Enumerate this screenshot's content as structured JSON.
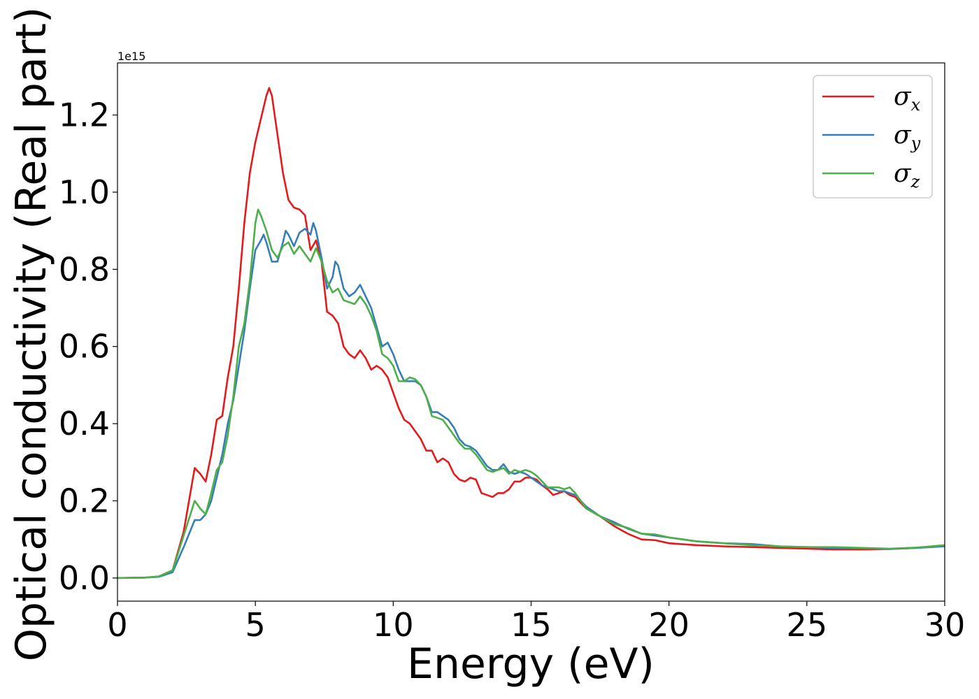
{
  "chart_data": {
    "type": "line",
    "xlabel": "Energy (eV)",
    "ylabel": "Optical conductivity (Real part)",
    "offset_text": "1e15",
    "xlim": [
      0,
      30
    ],
    "ylim": [
      -0.06,
      1.335
    ],
    "x_ticks": [
      0,
      5,
      10,
      15,
      20,
      25,
      30
    ],
    "x_tick_labels": [
      "0",
      "5",
      "10",
      "15",
      "20",
      "25",
      "30"
    ],
    "y_ticks": [
      0.0,
      0.2,
      0.4,
      0.6,
      0.8,
      1.0,
      1.2
    ],
    "y_tick_labels": [
      "0.0",
      "0.2",
      "0.4",
      "0.6",
      "0.8",
      "1.0",
      "1.2"
    ],
    "grid": false,
    "legend_position": "top-right",
    "series": [
      {
        "name": "σx",
        "name_base": "σ",
        "name_sub": "x",
        "color": "#e41a1c",
        "points": [
          [
            0,
            0
          ],
          [
            1,
            0.001
          ],
          [
            1.5,
            0.004
          ],
          [
            2.0,
            0.02
          ],
          [
            2.4,
            0.12
          ],
          [
            2.8,
            0.285
          ],
          [
            3.0,
            0.27
          ],
          [
            3.2,
            0.25
          ],
          [
            3.4,
            0.32
          ],
          [
            3.6,
            0.41
          ],
          [
            3.8,
            0.42
          ],
          [
            4.0,
            0.52
          ],
          [
            4.2,
            0.6
          ],
          [
            4.4,
            0.75
          ],
          [
            4.6,
            0.92
          ],
          [
            4.8,
            1.05
          ],
          [
            5.0,
            1.13
          ],
          [
            5.2,
            1.19
          ],
          [
            5.4,
            1.25
          ],
          [
            5.5,
            1.27
          ],
          [
            5.6,
            1.25
          ],
          [
            5.8,
            1.15
          ],
          [
            6.0,
            1.05
          ],
          [
            6.2,
            0.98
          ],
          [
            6.4,
            0.96
          ],
          [
            6.6,
            0.955
          ],
          [
            6.8,
            0.94
          ],
          [
            7.0,
            0.85
          ],
          [
            7.2,
            0.875
          ],
          [
            7.4,
            0.82
          ],
          [
            7.6,
            0.69
          ],
          [
            7.8,
            0.68
          ],
          [
            8.0,
            0.66
          ],
          [
            8.2,
            0.6
          ],
          [
            8.4,
            0.58
          ],
          [
            8.6,
            0.57
          ],
          [
            8.8,
            0.59
          ],
          [
            9.0,
            0.57
          ],
          [
            9.2,
            0.54
          ],
          [
            9.4,
            0.55
          ],
          [
            9.6,
            0.54
          ],
          [
            9.8,
            0.52
          ],
          [
            10.0,
            0.48
          ],
          [
            10.2,
            0.44
          ],
          [
            10.4,
            0.41
          ],
          [
            10.6,
            0.4
          ],
          [
            10.8,
            0.38
          ],
          [
            11.0,
            0.36
          ],
          [
            11.2,
            0.33
          ],
          [
            11.4,
            0.33
          ],
          [
            11.6,
            0.3
          ],
          [
            11.8,
            0.31
          ],
          [
            12.0,
            0.3
          ],
          [
            12.2,
            0.27
          ],
          [
            12.4,
            0.255
          ],
          [
            12.6,
            0.25
          ],
          [
            12.8,
            0.26
          ],
          [
            13.0,
            0.255
          ],
          [
            13.2,
            0.22
          ],
          [
            13.4,
            0.215
          ],
          [
            13.6,
            0.21
          ],
          [
            13.8,
            0.22
          ],
          [
            14.0,
            0.22
          ],
          [
            14.2,
            0.23
          ],
          [
            14.4,
            0.25
          ],
          [
            14.6,
            0.25
          ],
          [
            14.8,
            0.26
          ],
          [
            15.0,
            0.26
          ],
          [
            15.2,
            0.255
          ],
          [
            15.4,
            0.24
          ],
          [
            15.6,
            0.23
          ],
          [
            15.8,
            0.215
          ],
          [
            16.0,
            0.22
          ],
          [
            16.2,
            0.225
          ],
          [
            16.4,
            0.215
          ],
          [
            16.6,
            0.21
          ],
          [
            16.8,
            0.195
          ],
          [
            17.0,
            0.18
          ],
          [
            17.5,
            0.16
          ],
          [
            18.0,
            0.135
          ],
          [
            18.5,
            0.115
          ],
          [
            19.0,
            0.1
          ],
          [
            19.5,
            0.098
          ],
          [
            20.0,
            0.09
          ],
          [
            21.0,
            0.085
          ],
          [
            22.0,
            0.082
          ],
          [
            23.0,
            0.08
          ],
          [
            24.0,
            0.078
          ],
          [
            25.0,
            0.076
          ],
          [
            26.0,
            0.074
          ],
          [
            27.0,
            0.074
          ],
          [
            28.0,
            0.075
          ],
          [
            29.0,
            0.078
          ],
          [
            30.0,
            0.083
          ]
        ]
      },
      {
        "name": "σy",
        "name_base": "σ",
        "name_sub": "y",
        "color": "#377eb8",
        "points": [
          [
            0,
            0
          ],
          [
            1,
            0.001
          ],
          [
            1.5,
            0.003
          ],
          [
            2.0,
            0.015
          ],
          [
            2.4,
            0.08
          ],
          [
            2.8,
            0.15
          ],
          [
            3.0,
            0.15
          ],
          [
            3.2,
            0.165
          ],
          [
            3.4,
            0.2
          ],
          [
            3.6,
            0.26
          ],
          [
            3.8,
            0.32
          ],
          [
            4.0,
            0.4
          ],
          [
            4.2,
            0.46
          ],
          [
            4.4,
            0.55
          ],
          [
            4.6,
            0.64
          ],
          [
            4.8,
            0.75
          ],
          [
            5.0,
            0.85
          ],
          [
            5.2,
            0.875
          ],
          [
            5.3,
            0.89
          ],
          [
            5.4,
            0.87
          ],
          [
            5.6,
            0.82
          ],
          [
            5.8,
            0.82
          ],
          [
            6.0,
            0.87
          ],
          [
            6.1,
            0.9
          ],
          [
            6.2,
            0.89
          ],
          [
            6.4,
            0.86
          ],
          [
            6.6,
            0.895
          ],
          [
            6.8,
            0.905
          ],
          [
            7.0,
            0.89
          ],
          [
            7.1,
            0.92
          ],
          [
            7.2,
            0.9
          ],
          [
            7.4,
            0.83
          ],
          [
            7.6,
            0.75
          ],
          [
            7.8,
            0.78
          ],
          [
            7.9,
            0.82
          ],
          [
            8.0,
            0.81
          ],
          [
            8.2,
            0.75
          ],
          [
            8.4,
            0.73
          ],
          [
            8.6,
            0.74
          ],
          [
            8.8,
            0.76
          ],
          [
            9.0,
            0.73
          ],
          [
            9.2,
            0.7
          ],
          [
            9.4,
            0.65
          ],
          [
            9.6,
            0.6
          ],
          [
            9.8,
            0.61
          ],
          [
            10.0,
            0.58
          ],
          [
            10.2,
            0.54
          ],
          [
            10.4,
            0.51
          ],
          [
            10.6,
            0.51
          ],
          [
            10.8,
            0.51
          ],
          [
            11.0,
            0.5
          ],
          [
            11.2,
            0.47
          ],
          [
            11.4,
            0.43
          ],
          [
            11.6,
            0.43
          ],
          [
            11.8,
            0.42
          ],
          [
            12.0,
            0.41
          ],
          [
            12.2,
            0.39
          ],
          [
            12.4,
            0.36
          ],
          [
            12.6,
            0.345
          ],
          [
            12.8,
            0.34
          ],
          [
            13.0,
            0.33
          ],
          [
            13.2,
            0.31
          ],
          [
            13.4,
            0.29
          ],
          [
            13.6,
            0.28
          ],
          [
            13.8,
            0.28
          ],
          [
            14.0,
            0.295
          ],
          [
            14.2,
            0.275
          ],
          [
            14.4,
            0.27
          ],
          [
            14.6,
            0.275
          ],
          [
            14.8,
            0.27
          ],
          [
            15.0,
            0.26
          ],
          [
            15.2,
            0.25
          ],
          [
            15.4,
            0.24
          ],
          [
            15.6,
            0.235
          ],
          [
            15.8,
            0.23
          ],
          [
            16.0,
            0.225
          ],
          [
            16.2,
            0.225
          ],
          [
            16.4,
            0.22
          ],
          [
            16.6,
            0.215
          ],
          [
            16.8,
            0.2
          ],
          [
            17.0,
            0.185
          ],
          [
            17.5,
            0.16
          ],
          [
            18.0,
            0.145
          ],
          [
            18.5,
            0.128
          ],
          [
            19.0,
            0.115
          ],
          [
            19.5,
            0.11
          ],
          [
            20.0,
            0.105
          ],
          [
            21.0,
            0.095
          ],
          [
            22.0,
            0.09
          ],
          [
            23.0,
            0.088
          ],
          [
            24.0,
            0.082
          ],
          [
            25.0,
            0.08
          ],
          [
            26.0,
            0.078
          ],
          [
            27.0,
            0.077
          ],
          [
            28.0,
            0.075
          ],
          [
            29.0,
            0.078
          ],
          [
            30.0,
            0.082
          ]
        ]
      },
      {
        "name": "σz",
        "name_base": "σ",
        "name_sub": "z",
        "color": "#4daf4a",
        "points": [
          [
            0,
            0
          ],
          [
            1,
            0.001
          ],
          [
            1.5,
            0.004
          ],
          [
            2.0,
            0.02
          ],
          [
            2.4,
            0.11
          ],
          [
            2.8,
            0.2
          ],
          [
            3.0,
            0.18
          ],
          [
            3.2,
            0.165
          ],
          [
            3.4,
            0.22
          ],
          [
            3.6,
            0.28
          ],
          [
            3.8,
            0.3
          ],
          [
            4.0,
            0.37
          ],
          [
            4.2,
            0.47
          ],
          [
            4.4,
            0.6
          ],
          [
            4.6,
            0.66
          ],
          [
            4.8,
            0.77
          ],
          [
            5.0,
            0.92
          ],
          [
            5.1,
            0.955
          ],
          [
            5.2,
            0.94
          ],
          [
            5.4,
            0.9
          ],
          [
            5.6,
            0.85
          ],
          [
            5.8,
            0.83
          ],
          [
            6.0,
            0.86
          ],
          [
            6.2,
            0.87
          ],
          [
            6.4,
            0.84
          ],
          [
            6.6,
            0.86
          ],
          [
            6.8,
            0.84
          ],
          [
            7.0,
            0.82
          ],
          [
            7.2,
            0.855
          ],
          [
            7.4,
            0.82
          ],
          [
            7.6,
            0.77
          ],
          [
            7.8,
            0.74
          ],
          [
            8.0,
            0.75
          ],
          [
            8.2,
            0.72
          ],
          [
            8.4,
            0.715
          ],
          [
            8.6,
            0.71
          ],
          [
            8.8,
            0.73
          ],
          [
            9.0,
            0.71
          ],
          [
            9.2,
            0.68
          ],
          [
            9.4,
            0.64
          ],
          [
            9.6,
            0.58
          ],
          [
            9.8,
            0.57
          ],
          [
            10.0,
            0.55
          ],
          [
            10.2,
            0.51
          ],
          [
            10.4,
            0.51
          ],
          [
            10.6,
            0.52
          ],
          [
            10.8,
            0.515
          ],
          [
            11.0,
            0.5
          ],
          [
            11.2,
            0.47
          ],
          [
            11.4,
            0.42
          ],
          [
            11.6,
            0.415
          ],
          [
            11.8,
            0.41
          ],
          [
            12.0,
            0.39
          ],
          [
            12.2,
            0.37
          ],
          [
            12.4,
            0.35
          ],
          [
            12.6,
            0.335
          ],
          [
            12.8,
            0.335
          ],
          [
            13.0,
            0.32
          ],
          [
            13.2,
            0.3
          ],
          [
            13.4,
            0.28
          ],
          [
            13.6,
            0.275
          ],
          [
            13.8,
            0.28
          ],
          [
            14.0,
            0.285
          ],
          [
            14.2,
            0.27
          ],
          [
            14.4,
            0.28
          ],
          [
            14.6,
            0.275
          ],
          [
            14.8,
            0.28
          ],
          [
            15.0,
            0.275
          ],
          [
            15.2,
            0.265
          ],
          [
            15.4,
            0.25
          ],
          [
            15.6,
            0.235
          ],
          [
            15.8,
            0.235
          ],
          [
            16.0,
            0.235
          ],
          [
            16.2,
            0.23
          ],
          [
            16.4,
            0.235
          ],
          [
            16.6,
            0.22
          ],
          [
            16.8,
            0.2
          ],
          [
            17.0,
            0.18
          ],
          [
            17.5,
            0.16
          ],
          [
            18.0,
            0.14
          ],
          [
            18.5,
            0.13
          ],
          [
            19.0,
            0.115
          ],
          [
            19.5,
            0.113
          ],
          [
            20.0,
            0.105
          ],
          [
            21.0,
            0.095
          ],
          [
            22.0,
            0.09
          ],
          [
            23.0,
            0.085
          ],
          [
            24.0,
            0.082
          ],
          [
            25.0,
            0.08
          ],
          [
            26.0,
            0.08
          ],
          [
            27.0,
            0.078
          ],
          [
            28.0,
            0.076
          ],
          [
            29.0,
            0.079
          ],
          [
            30.0,
            0.085
          ]
        ]
      }
    ]
  }
}
